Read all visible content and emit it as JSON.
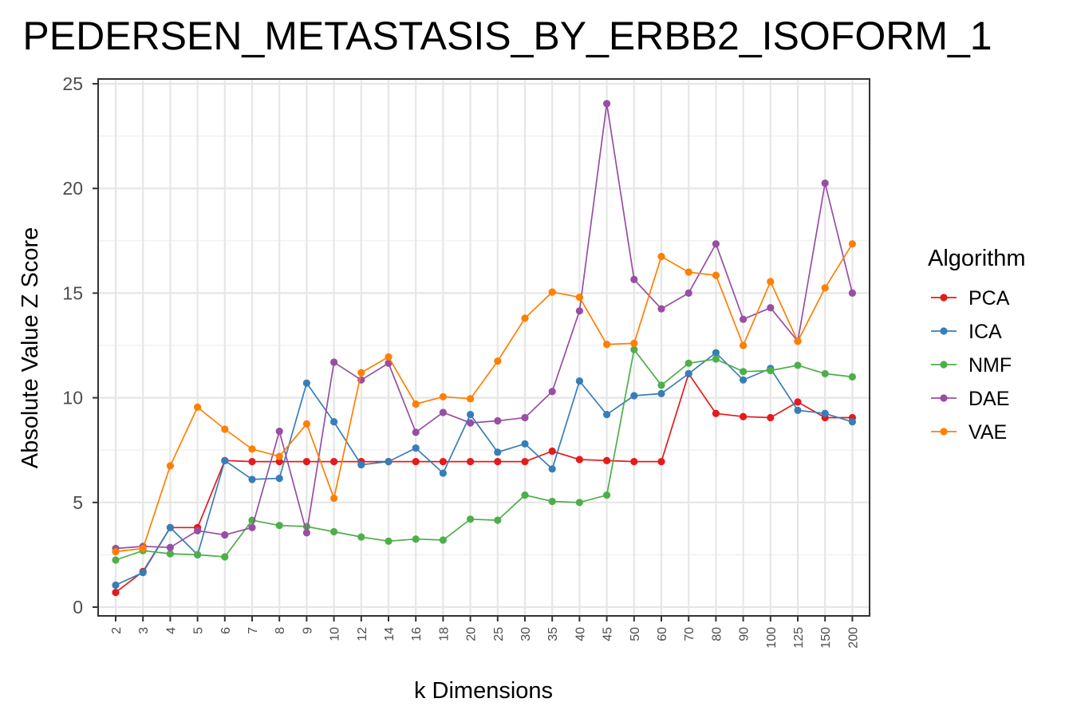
{
  "chart_data": {
    "type": "line",
    "title": "PEDERSEN_METASTASIS_BY_ERBB2_ISOFORM_1",
    "xlabel": "k Dimensions",
    "ylabel": "Absolute Value Z Score",
    "ylim": [
      0,
      25
    ],
    "yticks": [
      "0",
      "5",
      "10",
      "15",
      "20",
      "25"
    ],
    "grid": true,
    "legend_title": "Algorithm",
    "legend_position": "right",
    "categories": [
      "2",
      "3",
      "4",
      "5",
      "6",
      "7",
      "8",
      "9",
      "10",
      "12",
      "14",
      "16",
      "18",
      "20",
      "25",
      "30",
      "35",
      "40",
      "45",
      "50",
      "60",
      "70",
      "80",
      "90",
      "100",
      "125",
      "150",
      "200"
    ],
    "series": [
      {
        "name": "PCA",
        "color": "#e41a1c",
        "values": [
          0.7,
          1.7,
          3.8,
          3.8,
          7.0,
          6.95,
          6.95,
          6.95,
          6.95,
          6.95,
          6.95,
          6.95,
          6.95,
          6.95,
          6.95,
          6.95,
          7.45,
          7.05,
          7.0,
          6.95,
          6.95,
          11.15,
          9.25,
          9.1,
          9.05,
          9.8,
          9.05,
          9.05
        ]
      },
      {
        "name": "ICA",
        "color": "#377eb8",
        "values": [
          1.05,
          1.65,
          3.8,
          2.5,
          7.0,
          6.1,
          6.15,
          10.7,
          8.85,
          6.8,
          6.95,
          7.6,
          6.4,
          9.2,
          7.4,
          7.8,
          6.6,
          10.8,
          9.2,
          10.1,
          10.2,
          11.15,
          12.15,
          10.85,
          11.4,
          9.4,
          9.25,
          8.85
        ]
      },
      {
        "name": "NMF",
        "color": "#4daf4a",
        "values": [
          2.25,
          2.7,
          2.55,
          2.5,
          2.4,
          4.15,
          3.9,
          3.85,
          3.6,
          3.35,
          3.15,
          3.25,
          3.2,
          4.2,
          4.15,
          5.35,
          5.05,
          5.0,
          5.35,
          12.3,
          10.6,
          11.65,
          11.85,
          11.25,
          11.3,
          11.55,
          11.15,
          11.0
        ]
      },
      {
        "name": "DAE",
        "color": "#984ea3",
        "values": [
          2.8,
          2.9,
          2.85,
          3.65,
          3.45,
          3.8,
          8.4,
          3.55,
          11.7,
          10.85,
          11.65,
          8.35,
          9.3,
          8.8,
          8.9,
          9.05,
          10.3,
          14.15,
          24.05,
          15.65,
          14.25,
          15.0,
          17.35,
          13.75,
          14.3,
          12.7,
          20.25,
          15.0
        ]
      },
      {
        "name": "VAE",
        "color": "#ff7f00",
        "values": [
          2.65,
          2.8,
          6.75,
          9.55,
          8.5,
          7.55,
          7.2,
          8.75,
          5.2,
          11.2,
          11.95,
          9.7,
          10.05,
          9.95,
          11.75,
          13.8,
          15.05,
          14.8,
          12.55,
          12.6,
          16.75,
          16.0,
          15.85,
          12.5,
          15.55,
          12.7,
          15.25,
          17.35
        ]
      }
    ]
  }
}
